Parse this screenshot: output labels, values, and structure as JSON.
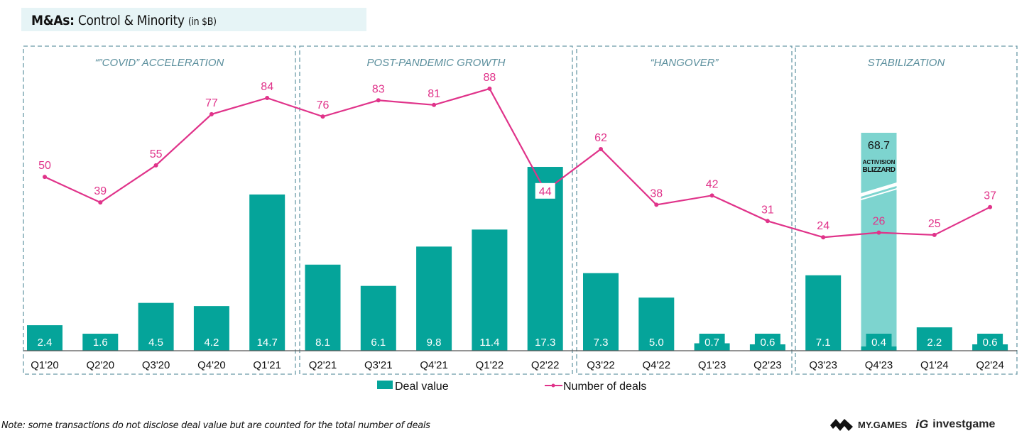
{
  "header": {
    "title_bold": "M&As:",
    "title_main": "Control & Minority",
    "title_unit": "(in $B)"
  },
  "footer": {
    "note": "Note: some transactions do not disclose deal value but are counted for the total number of deals",
    "logo_1": "MY.GAMES",
    "logo_2": "investgame",
    "logo_2_mark": "iG"
  },
  "colors": {
    "bar": "#05a49a",
    "bar_highlight": "#7dd4cf",
    "line": "#e0338a",
    "period_border": "#6a9aa8",
    "period_label": "#5b8f9d"
  },
  "chart_data": {
    "type": "bar",
    "title": "M&As: Control & Minority (in $B)",
    "xlabel": "",
    "ylabel": "",
    "categories": [
      "Q1'20",
      "Q2'20",
      "Q3'20",
      "Q4'20",
      "Q1'21",
      "Q2'21",
      "Q3'21",
      "Q4'21",
      "Q1'22",
      "Q2'22",
      "Q3'22",
      "Q4'22",
      "Q1'23",
      "Q2'23",
      "Q3'23",
      "Q4'23",
      "Q1'24",
      "Q2'24"
    ],
    "series": [
      {
        "name": "Deal value",
        "type": "bar",
        "values": [
          2.4,
          1.6,
          4.5,
          4.2,
          14.7,
          8.1,
          6.1,
          9.8,
          11.4,
          17.3,
          7.3,
          5.0,
          0.7,
          0.6,
          7.1,
          0.4,
          2.2,
          0.6
        ],
        "labels": [
          "2.4",
          "1.6",
          "4.5",
          "4.2",
          "14.7",
          "8.1",
          "6.1",
          "9.8",
          "11.4",
          "17.3",
          "7.3",
          "5.0",
          "0.7",
          "0.6",
          "7.1",
          "0.4",
          "2.2",
          "0.6"
        ]
      },
      {
        "name": "Number of deals",
        "type": "line",
        "values": [
          50,
          39,
          55,
          77,
          84,
          76,
          83,
          81,
          88,
          44,
          62,
          38,
          42,
          31,
          24,
          26,
          25,
          37
        ]
      }
    ],
    "annotation": {
      "category": "Q4'23",
      "value": 68.7,
      "label": "68.7",
      "note": "ACTIVISION BLIZZARD",
      "axis_break": true
    },
    "periods": [
      {
        "label": "“”COVID” ACCELERATION",
        "from": "Q1'20",
        "to": "Q1'21"
      },
      {
        "label": "POST-PANDEMIC GROWTH",
        "from": "Q2'21",
        "to": "Q2'22"
      },
      {
        "label": "“HANGOVER”",
        "from": "Q3'22",
        "to": "Q2'23"
      },
      {
        "label": "STABILIZATION",
        "from": "Q3'23",
        "to": "Q2'24"
      }
    ],
    "legend": {
      "position": "bottom",
      "items": [
        "Deal value",
        "Number of deals"
      ]
    },
    "grid": false
  }
}
